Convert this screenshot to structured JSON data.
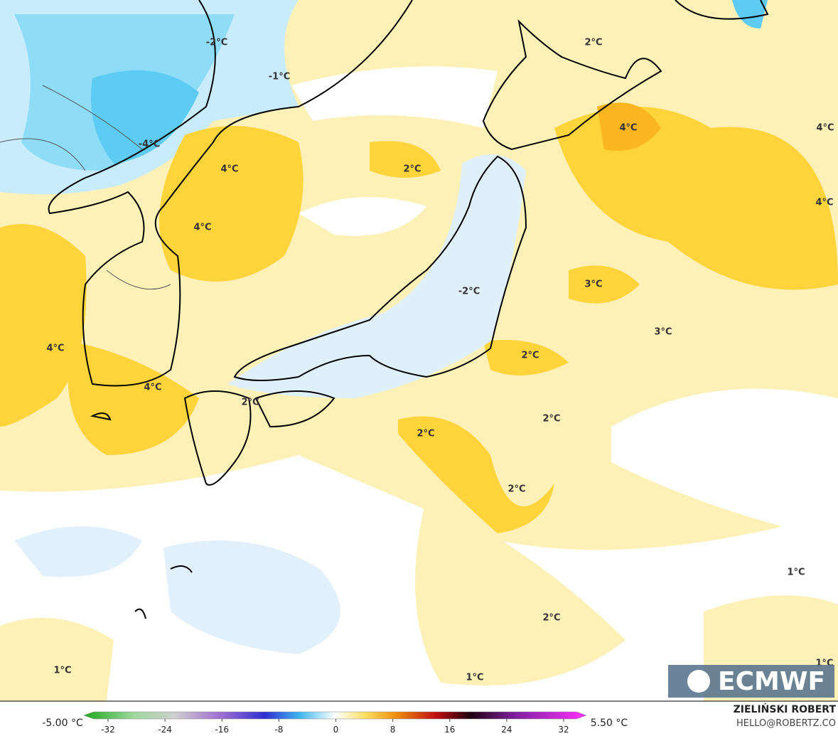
{
  "map": {
    "labels": [
      "-2°C",
      "-1°C",
      "2°C",
      "4°C",
      "4°C",
      "-4°C",
      "4°C",
      "2°C",
      "4°C",
      "4°C",
      "3°C",
      "-2°C",
      "3°C",
      "4°C",
      "2°C",
      "4°C",
      "2°C",
      "2°C",
      "2°C",
      "2°C",
      "1°C",
      "2°C",
      "1°C",
      "1°C",
      "1°C"
    ],
    "logo": "ECMWF"
  },
  "colorbar": {
    "min_label": "-5.00 °C",
    "max_label": "5.50 °C",
    "ticks": [
      -32,
      -24,
      -16,
      -8,
      0,
      8,
      16,
      24,
      32
    ]
  },
  "credit": {
    "author": "ZIELIŃSKI ROBERT",
    "contact": "HELLO@ROBERTZ.CO"
  }
}
